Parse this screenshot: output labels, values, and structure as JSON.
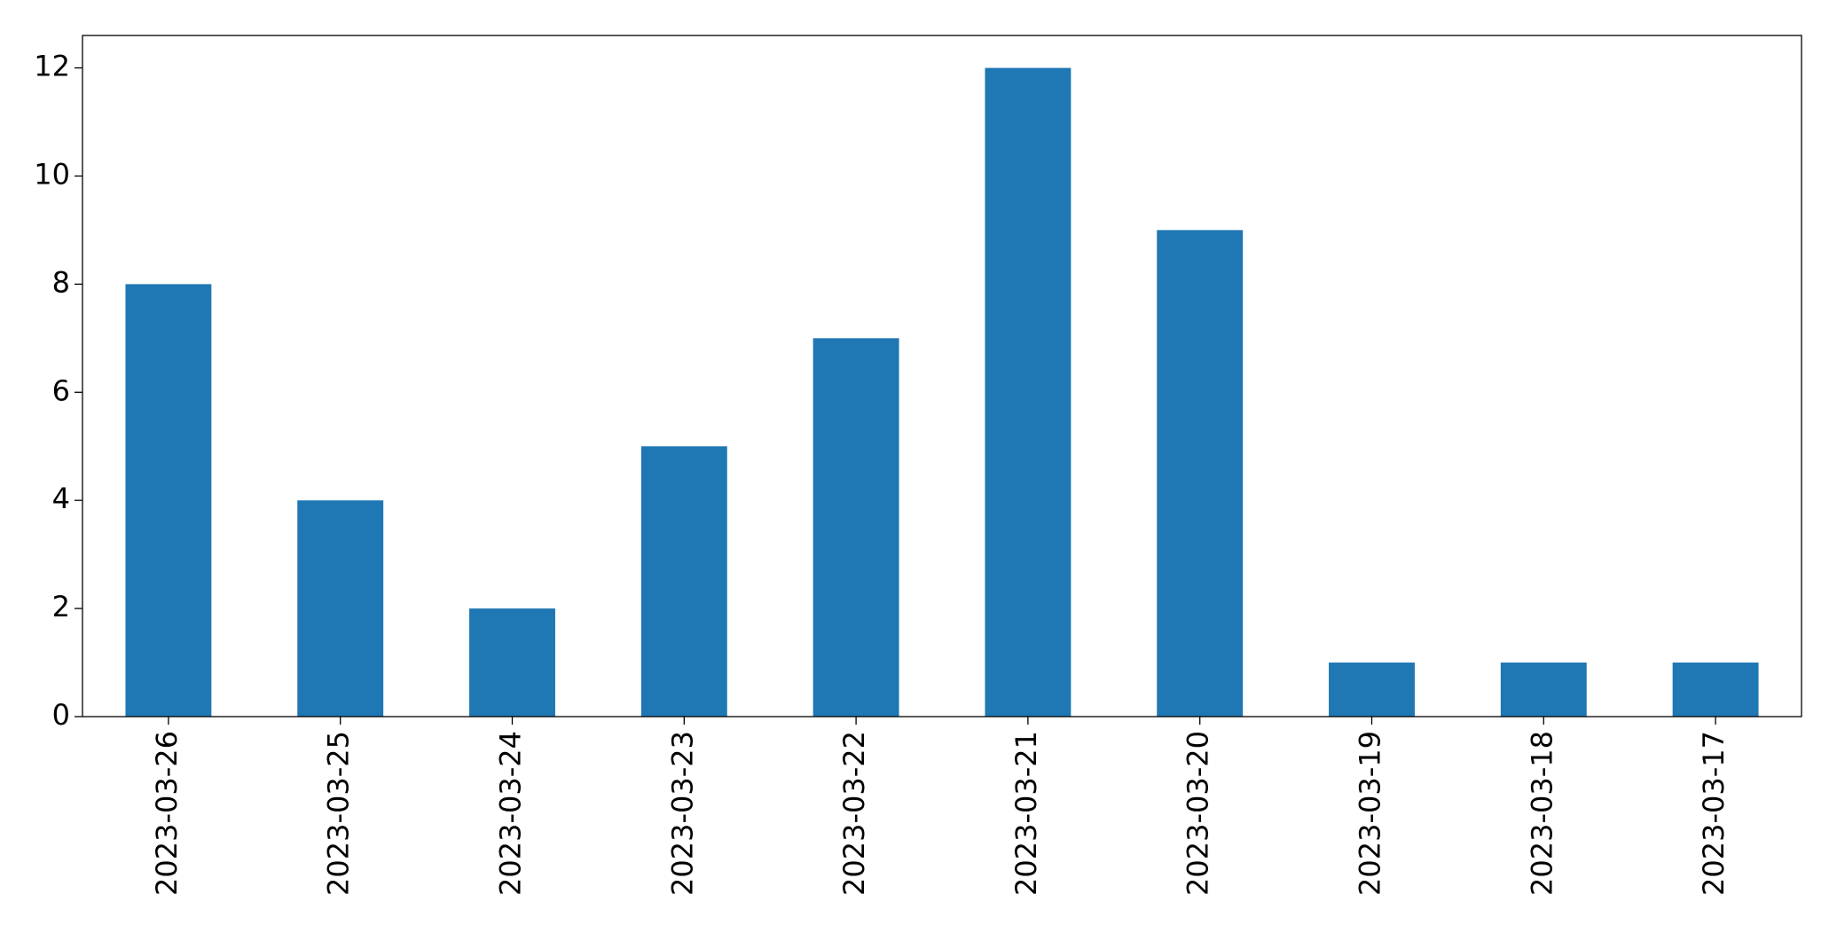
{
  "chart_data": {
    "type": "bar",
    "categories": [
      "2023-03-26",
      "2023-03-25",
      "2023-03-24",
      "2023-03-23",
      "2023-03-22",
      "2023-03-21",
      "2023-03-20",
      "2023-03-19",
      "2023-03-18",
      "2023-03-17"
    ],
    "values": [
      8,
      4,
      2,
      5,
      7,
      12,
      9,
      1,
      1,
      1
    ],
    "color": "#1f77b4",
    "ylim": [
      0,
      12.6
    ],
    "yticks": [
      0,
      2,
      4,
      6,
      8,
      10,
      12
    ],
    "grid": false
  }
}
